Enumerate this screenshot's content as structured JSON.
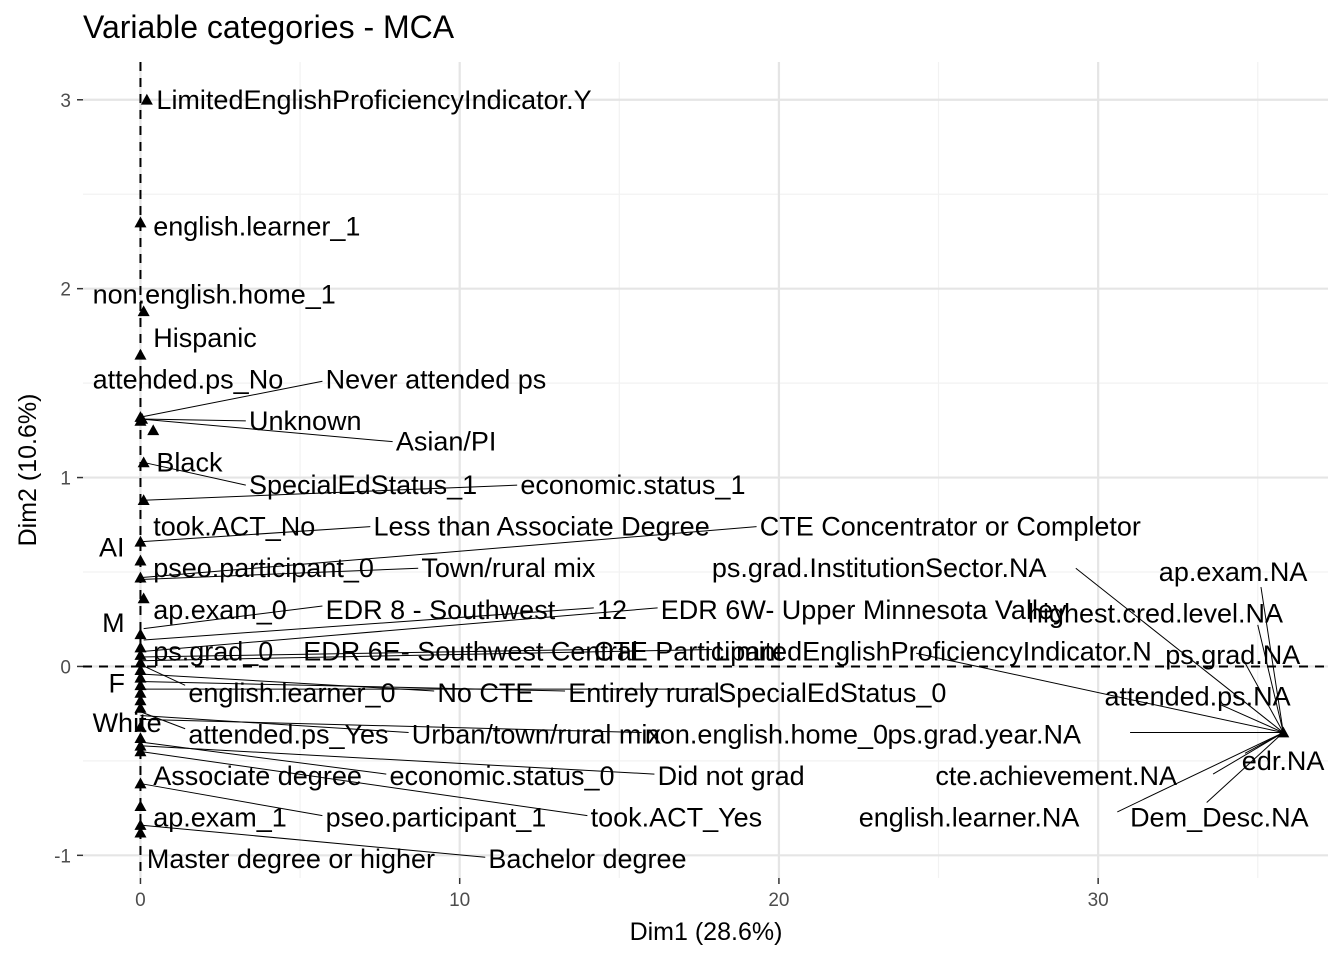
{
  "chart_data": {
    "type": "scatter",
    "title": "Variable categories - MCA",
    "xlabel": "Dim1 (28.6%)",
    "ylabel": "Dim2 (10.6%)",
    "xlim": [
      -1.8,
      37.2
    ],
    "ylim": [
      -1.12,
      3.2
    ],
    "x_ticks": [
      0,
      10,
      20,
      30
    ],
    "y_ticks": [
      -1,
      0,
      1,
      2,
      3
    ],
    "grid": true,
    "reference_lines": {
      "x": 0,
      "y": 0
    },
    "marker": "triangle",
    "colors": {
      "points": "#000000",
      "grid_major": "#e5e5e5",
      "grid_minor": "#f2f2f2",
      "ticks": "#4d4d4d"
    },
    "points": [
      {
        "x": 0.2,
        "y": 3.0
      },
      {
        "x": 0.0,
        "y": 2.35
      },
      {
        "x": 0.1,
        "y": 1.88
      },
      {
        "x": 0.0,
        "y": 1.65
      },
      {
        "x": 0.0,
        "y": 1.32
      },
      {
        "x": 0.0,
        "y": 1.3
      },
      {
        "x": 0.05,
        "y": 1.31
      },
      {
        "x": 0.4,
        "y": 1.25
      },
      {
        "x": 0.1,
        "y": 1.08
      },
      {
        "x": 0.1,
        "y": 0.88
      },
      {
        "x": 0.0,
        "y": 0.66
      },
      {
        "x": 0.0,
        "y": 0.56
      },
      {
        "x": 0.0,
        "y": 0.47
      },
      {
        "x": 0.1,
        "y": 0.36
      },
      {
        "x": 0.0,
        "y": 0.17
      },
      {
        "x": 0.0,
        "y": 0.1
      },
      {
        "x": 0.0,
        "y": 0.06
      },
      {
        "x": 0.0,
        "y": 0.02
      },
      {
        "x": 0.0,
        "y": -0.02
      },
      {
        "x": 0.0,
        "y": -0.06
      },
      {
        "x": 0.0,
        "y": -0.1
      },
      {
        "x": 0.0,
        "y": -0.14
      },
      {
        "x": 0.0,
        "y": -0.18
      },
      {
        "x": 0.0,
        "y": -0.22
      },
      {
        "x": 0.0,
        "y": -0.32
      },
      {
        "x": 0.0,
        "y": -0.38
      },
      {
        "x": 0.0,
        "y": -0.42
      },
      {
        "x": 0.0,
        "y": -0.45
      },
      {
        "x": 0.0,
        "y": -0.62
      },
      {
        "x": 0.0,
        "y": -0.74
      },
      {
        "x": 0.0,
        "y": -0.84
      },
      {
        "x": 0.0,
        "y": -0.88
      },
      {
        "x": 35.8,
        "y": -0.35
      }
    ],
    "labels": [
      {
        "text": "LimitedEnglishProficiencyIndicator.Y",
        "x": 0.5,
        "y": 3.0
      },
      {
        "text": "english.learner_1",
        "x": 0.4,
        "y": 2.33
      },
      {
        "text": "non.english.home_1",
        "x": -1.5,
        "y": 1.97
      },
      {
        "text": "Hispanic",
        "x": 0.4,
        "y": 1.74
      },
      {
        "text": "attended.ps_No",
        "x": -1.5,
        "y": 1.52
      },
      {
        "text": "Never attended ps",
        "x": 5.8,
        "y": 1.52
      },
      {
        "text": "Unknown",
        "x": 3.4,
        "y": 1.3
      },
      {
        "text": "Asian/PI",
        "x": 8.0,
        "y": 1.19
      },
      {
        "text": "Black",
        "x": 0.5,
        "y": 1.08
      },
      {
        "text": "SpecialEdStatus_1",
        "x": 3.4,
        "y": 0.96
      },
      {
        "text": "economic.status_1",
        "x": 11.9,
        "y": 0.96
      },
      {
        "text": "took.ACT_No",
        "x": 0.4,
        "y": 0.74
      },
      {
        "text": "Less than Associate Degree",
        "x": 7.3,
        "y": 0.74
      },
      {
        "text": "CTE Concentrator or Completor",
        "x": 19.4,
        "y": 0.74
      },
      {
        "text": "AI",
        "x": -1.3,
        "y": 0.63
      },
      {
        "text": "pseo.participant_0",
        "x": 0.4,
        "y": 0.52
      },
      {
        "text": "Town/rural mix",
        "x": 8.8,
        "y": 0.52
      },
      {
        "text": "ps.grad.InstitutionSector.NA",
        "x": 17.9,
        "y": 0.52
      },
      {
        "text": "ap.exam.NA",
        "x": 31.9,
        "y": 0.5
      },
      {
        "text": "ap.exam_0",
        "x": 0.4,
        "y": 0.3
      },
      {
        "text": "EDR 8 - Southwest",
        "x": 5.8,
        "y": 0.3
      },
      {
        "text": "12",
        "x": 14.3,
        "y": 0.3
      },
      {
        "text": "EDR 6W- Upper Minnesota Valley",
        "x": 16.3,
        "y": 0.3
      },
      {
        "text": "highest.cred.level.NA",
        "x": 27.8,
        "y": 0.28
      },
      {
        "text": "M",
        "x": -1.2,
        "y": 0.23
      },
      {
        "text": "ps.grad_0",
        "x": 0.4,
        "y": 0.08
      },
      {
        "text": "EDR 6E- Southwest Central",
        "x": 5.1,
        "y": 0.08
      },
      {
        "text": "CTE Participant",
        "x": 14.2,
        "y": 0.08
      },
      {
        "text": "LimitedEnglishProficiencyIndicator.N",
        "x": 18.0,
        "y": 0.08
      },
      {
        "text": "ps.grad.NA",
        "x": 32.1,
        "y": 0.06
      },
      {
        "text": "F",
        "x": -1.0,
        "y": -0.09
      },
      {
        "text": "english.learner_0",
        "x": 1.5,
        "y": -0.14
      },
      {
        "text": "No CTE",
        "x": 9.3,
        "y": -0.14
      },
      {
        "text": "Entirely rural",
        "x": 13.4,
        "y": -0.14
      },
      {
        "text": "SpecialEdStatus_0",
        "x": 18.1,
        "y": -0.14
      },
      {
        "text": "attended.ps.NA",
        "x": 30.2,
        "y": -0.16
      },
      {
        "text": "White",
        "x": -1.5,
        "y": -0.3
      },
      {
        "text": "attended.ps_Yes",
        "x": 1.5,
        "y": -0.36
      },
      {
        "text": "Urban/town/rural mix",
        "x": 8.5,
        "y": -0.36
      },
      {
        "text": "non.english.home_0",
        "x": 15.8,
        "y": -0.36
      },
      {
        "text": "ps.grad.year.NA",
        "x": 23.4,
        "y": -0.36
      },
      {
        "text": "edr.NA",
        "x": 34.5,
        "y": -0.5
      },
      {
        "text": "Associate degree",
        "x": 0.4,
        "y": -0.58
      },
      {
        "text": "economic.status_0",
        "x": 7.8,
        "y": -0.58
      },
      {
        "text": "Did not grad",
        "x": 16.2,
        "y": -0.58
      },
      {
        "text": "cte.achievement.NA",
        "x": 24.9,
        "y": -0.58
      },
      {
        "text": "ap.exam_1",
        "x": 0.4,
        "y": -0.8
      },
      {
        "text": "pseo.participant_1",
        "x": 5.8,
        "y": -0.8
      },
      {
        "text": "took.ACT_Yes",
        "x": 14.1,
        "y": -0.8
      },
      {
        "text": "english.learner.NA",
        "x": 22.5,
        "y": -0.8
      },
      {
        "text": "Dem_Desc.NA",
        "x": 31.0,
        "y": -0.8
      },
      {
        "text": "Master degree or higher",
        "x": 0.2,
        "y": -1.02
      },
      {
        "text": "Bachelor degree",
        "x": 10.9,
        "y": -1.02
      }
    ],
    "connectors": [
      {
        "x1": 0.0,
        "y1": 1.32,
        "x2": 5.7,
        "y2": 1.51
      },
      {
        "x1": 0.0,
        "y1": 1.31,
        "x2": 3.3,
        "y2": 1.3
      },
      {
        "x1": 0.0,
        "y1": 1.31,
        "x2": 7.9,
        "y2": 1.19
      },
      {
        "x1": 0.1,
        "y1": 1.08,
        "x2": 3.3,
        "y2": 0.96
      },
      {
        "x1": 0.1,
        "y1": 0.88,
        "x2": 11.8,
        "y2": 0.96
      },
      {
        "x1": 0.0,
        "y1": 0.66,
        "x2": 7.2,
        "y2": 0.74
      },
      {
        "x1": 0.0,
        "y1": 0.47,
        "x2": 19.3,
        "y2": 0.74
      },
      {
        "x1": 0.0,
        "y1": 0.46,
        "x2": 8.7,
        "y2": 0.52
      },
      {
        "x1": 0.1,
        "y1": 0.2,
        "x2": 5.7,
        "y2": 0.32
      },
      {
        "x1": 0.1,
        "y1": 0.14,
        "x2": 14.2,
        "y2": 0.31
      },
      {
        "x1": 0.1,
        "y1": 0.08,
        "x2": 16.2,
        "y2": 0.31
      },
      {
        "x1": 0.0,
        "y1": 0.05,
        "x2": 14.1,
        "y2": 0.09
      },
      {
        "x1": 0.0,
        "y1": 0.03,
        "x2": 17.9,
        "y2": 0.09
      },
      {
        "x1": 0.0,
        "y1": 0.01,
        "x2": 1.4,
        "y2": -0.1
      },
      {
        "x1": 0.0,
        "y1": -0.04,
        "x2": 9.2,
        "y2": -0.13
      },
      {
        "x1": 0.0,
        "y1": -0.08,
        "x2": 13.3,
        "y2": -0.13
      },
      {
        "x1": 0.0,
        "y1": -0.12,
        "x2": 18.0,
        "y2": -0.12
      },
      {
        "x1": 0.0,
        "y1": -0.24,
        "x2": 1.4,
        "y2": -0.33
      },
      {
        "x1": 0.0,
        "y1": -0.26,
        "x2": 8.4,
        "y2": -0.35
      },
      {
        "x1": 0.0,
        "y1": -0.28,
        "x2": 15.7,
        "y2": -0.35
      },
      {
        "x1": 0.0,
        "y1": -0.4,
        "x2": 7.7,
        "y2": -0.57
      },
      {
        "x1": 0.0,
        "y1": -0.42,
        "x2": 16.1,
        "y2": -0.57
      },
      {
        "x1": 0.0,
        "y1": -0.62,
        "x2": 5.7,
        "y2": -0.79
      },
      {
        "x1": 0.0,
        "y1": -0.45,
        "x2": 14.0,
        "y2": -0.79
      },
      {
        "x1": 0.0,
        "y1": -0.84,
        "x2": 10.8,
        "y2": -1.01
      },
      {
        "x1": 29.3,
        "y1": 0.52,
        "x2": 35.8,
        "y2": -0.35
      },
      {
        "x1": 35.1,
        "y1": 0.42,
        "x2": 35.8,
        "y2": -0.35
      },
      {
        "x1": 35.0,
        "y1": 0.22,
        "x2": 35.8,
        "y2": -0.35
      },
      {
        "x1": 34.5,
        "y1": 0.05,
        "x2": 35.8,
        "y2": -0.35
      },
      {
        "x1": 33.8,
        "y1": -0.2,
        "x2": 35.8,
        "y2": -0.35
      },
      {
        "x1": 31.0,
        "y1": -0.35,
        "x2": 35.8,
        "y2": -0.35
      },
      {
        "x1": 34.6,
        "y1": -0.46,
        "x2": 35.8,
        "y2": -0.35
      },
      {
        "x1": 33.6,
        "y1": -0.57,
        "x2": 35.8,
        "y2": -0.35
      },
      {
        "x1": 30.6,
        "y1": -0.77,
        "x2": 35.8,
        "y2": -0.35
      },
      {
        "x1": 33.4,
        "y1": -0.72,
        "x2": 35.8,
        "y2": -0.35
      },
      {
        "x1": 24.3,
        "y1": 0.07,
        "x2": 35.8,
        "y2": -0.35
      }
    ]
  }
}
